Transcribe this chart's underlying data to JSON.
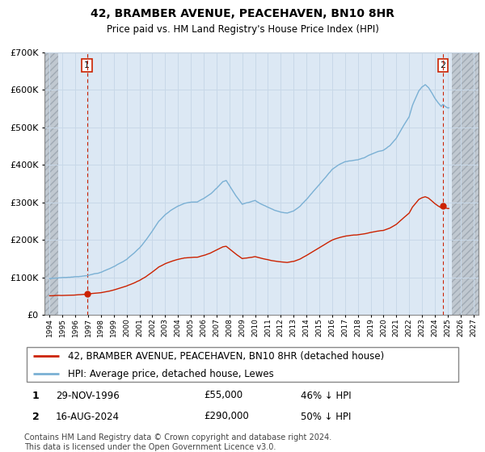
{
  "title": "42, BRAMBER AVENUE, PEACEHAVEN, BN10 8HR",
  "subtitle": "Price paid vs. HM Land Registry's House Price Index (HPI)",
  "hpi_label": "HPI: Average price, detached house, Lewes",
  "property_label": "42, BRAMBER AVENUE, PEACEHAVEN, BN10 8HR (detached house)",
  "sale1_date": "29-NOV-1996",
  "sale1_price": 55000,
  "sale1_pct": "46% ↓ HPI",
  "sale2_date": "16-AUG-2024",
  "sale2_price": 290000,
  "sale2_pct": "50% ↓ HPI",
  "footer": "Contains HM Land Registry data © Crown copyright and database right 2024.\nThis data is licensed under the Open Government Licence v3.0.",
  "hpi_color": "#7ab0d4",
  "property_color": "#cc2200",
  "dashed_line_color": "#cc2200",
  "grid_color": "#c8d8e8",
  "plot_bg": "#dce8f4",
  "hatch_color": "#c0c8d0",
  "ylim": [
    0,
    700000
  ],
  "yticks": [
    0,
    100000,
    200000,
    300000,
    400000,
    500000,
    600000,
    700000
  ],
  "xstart_year": 1994,
  "xend_year": 2027,
  "sale1_x": 1996.917,
  "sale2_x": 2024.625
}
